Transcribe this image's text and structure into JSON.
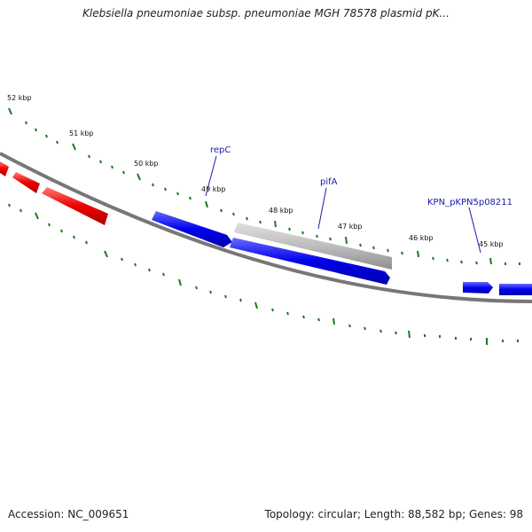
{
  "title": "Klebsiella pneumoniae subsp. pneumoniae MGH 78578 plasmid pK...",
  "footer": {
    "accession": "Accession: NC_009651",
    "topology": "Topology: circular; Length: 88,582 bp; Genes: 98"
  },
  "colors": {
    "backbone": "#808080",
    "forward_gene": "#0000ee",
    "reverse_gene": "#ee0000",
    "pseudo_gene": "#b8b8b8",
    "tick": "#1a7a1a",
    "label": "#1a1aa8"
  },
  "ticks_kbp": [
    "52 kbp",
    "51 kbp",
    "50 kbp",
    "49 kbp",
    "48 kbp",
    "47 kbp",
    "46 kbp",
    "45 kbp"
  ],
  "gene_labels": [
    "repC",
    "pifA",
    "KPN_pKPN5p08211"
  ]
}
